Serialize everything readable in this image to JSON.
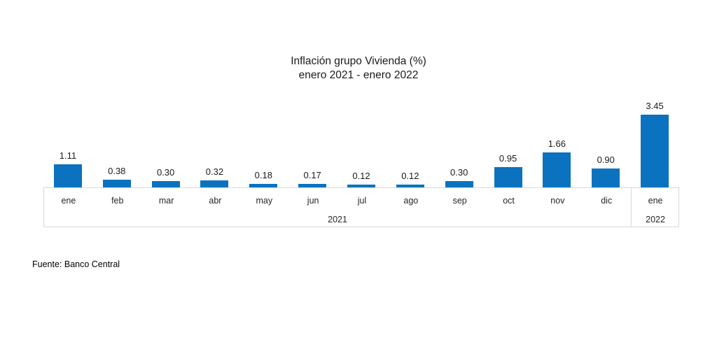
{
  "title": {
    "line1": "Inflación grupo Vivienda (%)",
    "line2": "enero 2021 - enero 2022"
  },
  "source": "Fuente: Banco Central",
  "colors": {
    "bar": "#0a72be",
    "axis_border": "#d9d9d9",
    "text": "#262626"
  },
  "chart_data": {
    "type": "bar",
    "title": "Inflación grupo Vivienda (%) enero 2021 - enero 2022",
    "categories": [
      "ene",
      "feb",
      "mar",
      "abr",
      "may",
      "jun",
      "jul",
      "ago",
      "sep",
      "oct",
      "nov",
      "dic",
      "ene"
    ],
    "values": [
      1.11,
      0.38,
      0.3,
      0.32,
      0.18,
      0.17,
      0.12,
      0.12,
      0.3,
      0.95,
      1.66,
      0.9,
      3.45
    ],
    "value_labels": [
      "1.11",
      "0.38",
      "0.30",
      "0.32",
      "0.18",
      "0.17",
      "0.12",
      "0.12",
      "0.30",
      "0.95",
      "1.66",
      "0.90",
      "3.45"
    ],
    "year_groups": [
      {
        "label": "2021",
        "span": 12
      },
      {
        "label": "2022",
        "span": 1
      }
    ],
    "xlabel": "",
    "ylabel": "",
    "ylim": [
      0,
      3.6
    ],
    "grid": false,
    "legend": false,
    "data_labels": true
  }
}
